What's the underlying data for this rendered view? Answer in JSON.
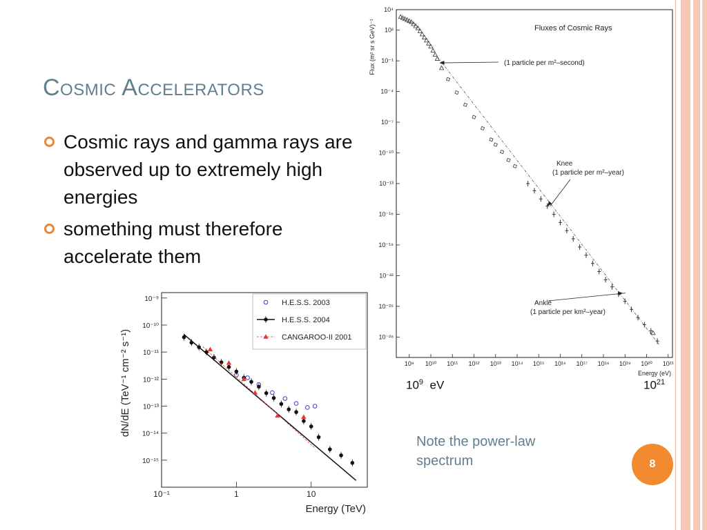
{
  "slide": {
    "title": "Cosmic Accelerators",
    "bullets": [
      "Cosmic rays and gamma rays are observed up to extremely high energies",
      "something must therefore accelerate them"
    ],
    "note": "Note the power-law spectrum",
    "page_number": "8",
    "energy_low_base": "10",
    "energy_low_exp": "9",
    "energy_low_unit": "eV",
    "energy_high_base": "10",
    "energy_high_exp": "21",
    "colors": {
      "title": "#5f7f8f",
      "bullet": "#e8873a",
      "badge": "#f28b30",
      "stripe": "#f6c9b6"
    }
  },
  "chart_data": [
    {
      "type": "scatter",
      "title": "Fluxes of Cosmic Rays",
      "ylabel": "Flux (m² sr s GeV)⁻¹",
      "xlabel": "Energy (eV)",
      "x_scale": "log",
      "y_scale": "log",
      "xlim_log10": [
        8.4,
        21.2
      ],
      "ylim_log10": [
        -30,
        4
      ],
      "x_ticks": [
        "10⁹",
        "10¹⁰",
        "10¹¹",
        "10¹²",
        "10¹³",
        "10¹⁴",
        "10¹⁵",
        "10¹⁶",
        "10¹⁷",
        "10¹⁸",
        "10¹⁹",
        "10²⁰",
        "10²¹"
      ],
      "x_tick_values_log10": [
        9,
        10,
        11,
        12,
        13,
        14,
        15,
        16,
        17,
        18,
        19,
        20,
        21
      ],
      "y_ticks": [
        "10⁴",
        "10²",
        "10⁻¹",
        "10⁻⁴",
        "10⁻⁷",
        "10⁻¹⁰",
        "10⁻¹³",
        "10⁻¹⁶",
        "10⁻¹⁹",
        "10⁻²²",
        "10⁻²⁵",
        "10⁻²⁸"
      ],
      "y_tick_values_log10": [
        4,
        2,
        -1,
        -4,
        -7,
        -10,
        -13,
        -16,
        -19,
        -22,
        -25,
        -28
      ],
      "series": [
        {
          "marker": "triangle",
          "points_log10": [
            [
              8.6,
              3.3
            ],
            [
              8.7,
              3.2
            ],
            [
              8.8,
              3.1
            ],
            [
              8.9,
              3.0
            ],
            [
              9.0,
              2.9
            ],
            [
              9.1,
              2.8
            ],
            [
              9.2,
              2.6
            ],
            [
              9.3,
              2.4
            ],
            [
              9.4,
              2.2
            ],
            [
              9.5,
              1.9
            ],
            [
              9.6,
              1.6
            ],
            [
              9.7,
              1.3
            ],
            [
              9.8,
              1.0
            ],
            [
              9.9,
              0.7
            ],
            [
              10.0,
              0.4
            ],
            [
              10.1,
              0.0
            ],
            [
              10.2,
              -0.4
            ],
            [
              10.3,
              -0.8
            ],
            [
              10.5,
              -1.7
            ],
            [
              20.3,
              -27.6
            ]
          ]
        },
        {
          "marker": "square",
          "points_log10": [
            [
              10.8,
              -2.8
            ],
            [
              11.2,
              -4.1
            ],
            [
              11.6,
              -5.3
            ],
            [
              12.0,
              -6.5
            ],
            [
              12.4,
              -7.6
            ],
            [
              12.8,
              -8.7
            ],
            [
              13.0,
              -9.2
            ],
            [
              13.3,
              -9.9
            ],
            [
              13.6,
              -10.7
            ],
            [
              13.9,
              -11.3
            ]
          ]
        },
        {
          "marker": "cross",
          "points_log10": [
            [
              14.5,
              -13.0
            ],
            [
              14.8,
              -13.7
            ],
            [
              15.1,
              -14.5
            ],
            [
              15.4,
              -15.2
            ],
            [
              15.7,
              -16.0
            ],
            [
              16.0,
              -16.8
            ],
            [
              16.3,
              -17.6
            ],
            [
              16.6,
              -18.4
            ],
            [
              16.9,
              -19.2
            ],
            [
              17.2,
              -20.0
            ],
            [
              17.5,
              -20.8
            ],
            [
              17.8,
              -21.6
            ],
            [
              18.1,
              -22.4
            ],
            [
              18.4,
              -23.1
            ],
            [
              18.7,
              -23.8
            ],
            [
              19.0,
              -24.5
            ],
            [
              19.3,
              -25.3
            ],
            [
              19.6,
              -26.1
            ],
            [
              19.9,
              -26.8
            ],
            [
              20.2,
              -27.4
            ],
            [
              20.5,
              -28.4
            ]
          ]
        }
      ],
      "annotations": [
        {
          "lines": [
            "(1 particle per m²–second)"
          ],
          "points_to_log10": [
            10.4,
            -1.2
          ]
        },
        {
          "lines": [
            "Knee",
            "(1 particle per m²–year)"
          ],
          "points_to_log10": [
            15.4,
            -15.2
          ]
        },
        {
          "lines": [
            "Ankle",
            "(1 particle per km²–year)"
          ],
          "points_to_log10": [
            18.9,
            -23.7
          ]
        }
      ]
    },
    {
      "type": "scatter",
      "title": "",
      "ylabel": "dN/dE (TeV⁻¹ cm⁻² s⁻¹)",
      "xlabel": "Energy (TeV)",
      "x_scale": "log",
      "y_scale": "log",
      "xlim_log10": [
        -1,
        1.75
      ],
      "ylim_log10": [
        -16,
        -8.8
      ],
      "x_ticks": [
        "10⁻¹",
        "1",
        "10"
      ],
      "x_tick_values_log10": [
        -1,
        0,
        1
      ],
      "y_ticks": [
        "10⁻⁹",
        "10⁻¹⁰",
        "10⁻¹¹",
        "10⁻¹²",
        "10⁻¹³",
        "10⁻¹⁴",
        "10⁻¹⁵"
      ],
      "y_tick_values_log10": [
        -9,
        -10,
        -11,
        -12,
        -13,
        -14,
        -15
      ],
      "legend_position": "top-right",
      "series": [
        {
          "name": "H.E.S.S. 2003",
          "color": "#3a3ad0",
          "marker": "open-circle",
          "points_log10": [
            [
              0.0,
              -11.85
            ],
            [
              0.15,
              -11.95
            ],
            [
              0.3,
              -12.2
            ],
            [
              0.48,
              -12.5
            ],
            [
              0.65,
              -12.72
            ],
            [
              0.8,
              -12.9
            ],
            [
              0.95,
              -13.05
            ],
            [
              1.05,
              -13.0
            ]
          ]
        },
        {
          "name": "H.E.S.S. 2004",
          "color": "#111111",
          "marker": "filled-circle",
          "fit_log10": [
            [
              -0.7,
              -10.35
            ],
            [
              1.6,
              -15.75
            ]
          ],
          "points_log10": [
            [
              -0.7,
              -10.45
            ],
            [
              -0.6,
              -10.65
            ],
            [
              -0.5,
              -10.82
            ],
            [
              -0.4,
              -11.0
            ],
            [
              -0.3,
              -11.2
            ],
            [
              -0.2,
              -11.38
            ],
            [
              -0.1,
              -11.55
            ],
            [
              0.0,
              -11.72
            ],
            [
              0.1,
              -11.95
            ],
            [
              0.2,
              -12.1
            ],
            [
              0.3,
              -12.28
            ],
            [
              0.4,
              -12.52
            ],
            [
              0.5,
              -12.7
            ],
            [
              0.6,
              -12.92
            ],
            [
              0.7,
              -13.12
            ],
            [
              0.8,
              -13.22
            ],
            [
              0.9,
              -13.55
            ],
            [
              1.0,
              -13.75
            ],
            [
              1.1,
              -14.15
            ],
            [
              1.25,
              -14.6
            ],
            [
              1.4,
              -14.82
            ],
            [
              1.55,
              -15.1
            ]
          ]
        },
        {
          "name": "CANGAROO-II 2001",
          "color": "#e03a3a",
          "marker": "triangle",
          "fit_log10": [
            [
              -0.45,
              -10.8
            ],
            [
              1.05,
              -14.55
            ]
          ],
          "points_log10": [
            [
              -0.35,
              -10.9
            ],
            [
              -0.1,
              -11.4
            ],
            [
              0.1,
              -12.0
            ],
            [
              0.25,
              -12.5
            ],
            [
              0.55,
              -13.35
            ],
            [
              0.9,
              -13.4
            ]
          ]
        }
      ]
    }
  ]
}
